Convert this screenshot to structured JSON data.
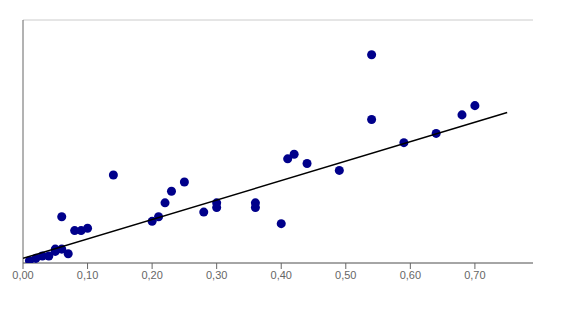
{
  "chart_data": {
    "type": "scatter",
    "series": [
      {
        "type": "scatter",
        "color": "#00008B",
        "x": [
          0.01,
          0.02,
          0.03,
          0.04,
          0.05,
          0.05,
          0.06,
          0.06,
          0.07,
          0.08,
          0.09,
          0.1,
          0.14,
          0.2,
          0.21,
          0.22,
          0.23,
          0.25,
          0.28,
          0.3,
          0.3,
          0.36,
          0.36,
          0.4,
          0.41,
          0.42,
          0.44,
          0.49,
          0.54,
          0.54,
          0.59,
          0.64,
          0.68,
          0.7
        ],
        "values": [
          0.01,
          0.02,
          0.03,
          0.03,
          0.05,
          0.06,
          0.06,
          0.2,
          0.04,
          0.14,
          0.14,
          0.15,
          0.38,
          0.18,
          0.2,
          0.26,
          0.31,
          0.35,
          0.22,
          0.24,
          0.26,
          0.24,
          0.26,
          0.17,
          0.45,
          0.47,
          0.43,
          0.4,
          0.62,
          0.9,
          0.52,
          0.56,
          0.64,
          0.68
        ]
      },
      {
        "type": "line",
        "color": "#000000",
        "x": [
          0.0,
          0.75
        ],
        "values": [
          0.02,
          0.65
        ]
      }
    ],
    "xlim": [
      0.0,
      0.79
    ],
    "ylim": [
      0.0,
      1.05
    ],
    "xticks": [
      {
        "value": 0.0,
        "label": "0,00"
      },
      {
        "value": 0.1,
        "label": "0,10"
      },
      {
        "value": 0.2,
        "label": "0,20"
      },
      {
        "value": 0.3,
        "label": "0,30"
      },
      {
        "value": 0.4,
        "label": "0,40"
      },
      {
        "value": 0.5,
        "label": "0,50"
      },
      {
        "value": 0.6,
        "label": "0,60"
      },
      {
        "value": 0.7,
        "label": "0,70"
      }
    ],
    "yticks": [
      0.0,
      0.105,
      0.21,
      0.315,
      0.42,
      0.525,
      0.63,
      0.735,
      0.84,
      0.945
    ],
    "grid": true,
    "tick_labels": "x"
  }
}
